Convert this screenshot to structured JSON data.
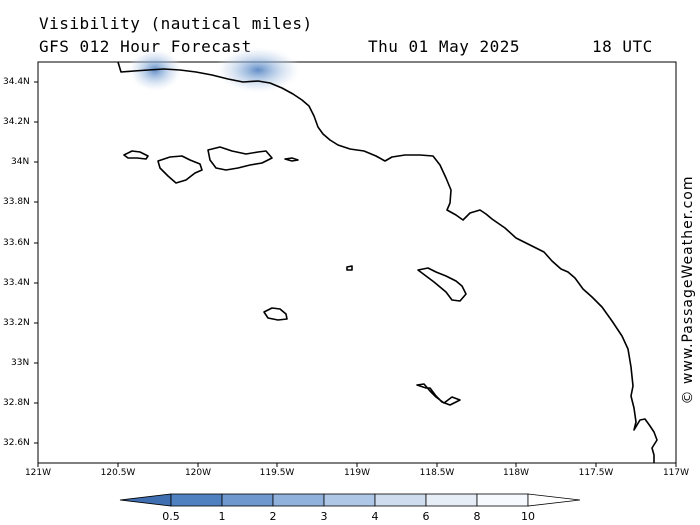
{
  "header": {
    "title": "Visibility (nautical miles)",
    "subtitle": "GFS 012 Hour Forecast",
    "date": "Thu 01 May 2025",
    "time": "18 UTC"
  },
  "credit": "© www.PassageWeather.com",
  "axes": {
    "lat_labels": [
      "34.4N",
      "34.2N",
      "34N",
      "33.8N",
      "33.6N",
      "33.4N",
      "33.2N",
      "33N",
      "32.8N",
      "32.6N"
    ],
    "lon_labels": [
      "121W",
      "120.5W",
      "120W",
      "119.5W",
      "119W",
      "118.5W",
      "118W",
      "117.5W",
      "117W"
    ]
  },
  "colorbar": {
    "labels": [
      "0.5",
      "1",
      "2",
      "3",
      "4",
      "6",
      "8",
      "10"
    ],
    "colors": [
      "#3f6fb0",
      "#4f80c0",
      "#6f98cf",
      "#8fb1db",
      "#afc7e6",
      "#cfdcef",
      "#e6edf7",
      "#f6f9fd",
      "#ffffff"
    ]
  },
  "map": {
    "region": "Southern California Bight",
    "lat_range": [
      32.5,
      34.5
    ],
    "lon_range": [
      -121,
      -117
    ],
    "land_color": "#ffffff",
    "coast_color": "#000000",
    "low_visibility_color": "#4f80c0"
  }
}
